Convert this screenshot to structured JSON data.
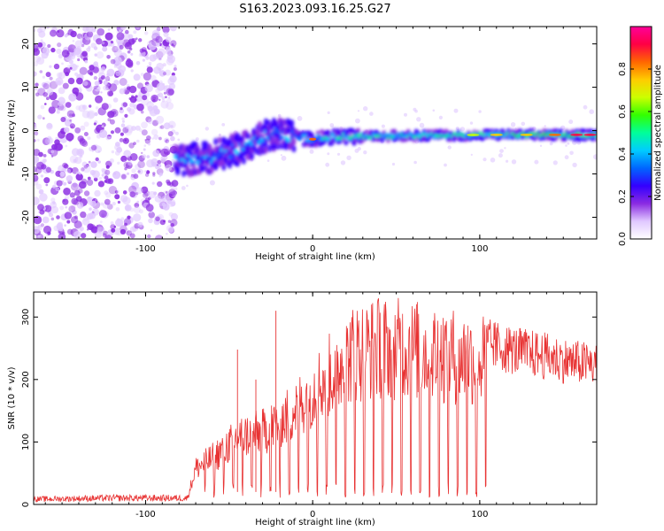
{
  "title": "S163.2023.093.16.25.G27",
  "colors": {
    "snr_line": "#e83333",
    "noise_dots": "#9b59ff",
    "colormap": [
      "#ffffff",
      "#e0c8ff",
      "#8a2be2",
      "#3300ff",
      "#0066ff",
      "#00ccff",
      "#00ff99",
      "#33ff00",
      "#ccff00",
      "#ffcc00",
      "#ff6600",
      "#ff0044",
      "#ff0099"
    ]
  },
  "chart_data": [
    {
      "type": "heatmap",
      "xlabel": "Height of straight line (km)",
      "ylabel": "Frequency (Hz)",
      "xlim": [
        -167,
        170
      ],
      "ylim": [
        -25,
        24
      ],
      "x_ticks": [
        -100,
        0,
        100
      ],
      "x_tick_labels": [
        "-100",
        "0",
        "100"
      ],
      "y_ticks": [
        -20,
        -10,
        0,
        10,
        20
      ],
      "y_tick_labels": [
        "-20",
        "-10",
        "0",
        "10",
        "20"
      ],
      "grid": false,
      "colorbar": {
        "label": "Normalized spectral amplitude",
        "range": [
          0,
          1
        ],
        "ticks": [
          0.0,
          0.2,
          0.4,
          0.6,
          0.8
        ],
        "tick_labels": [
          "0.0",
          "0.2",
          "0.4",
          "0.6",
          "0.8"
        ]
      },
      "ridge": [
        {
          "x": -80,
          "y": -7
        },
        {
          "x": -70,
          "y": -6.5
        },
        {
          "x": -60,
          "y": -6
        },
        {
          "x": -50,
          "y": -5
        },
        {
          "x": -40,
          "y": -3.5
        },
        {
          "x": -30,
          "y": -1.5
        },
        {
          "x": -20,
          "y": -0.5
        },
        {
          "x": -10,
          "y": -1.5
        },
        {
          "x": 0,
          "y": -2
        },
        {
          "x": 10,
          "y": -1.5
        },
        {
          "x": 50,
          "y": -1.2
        },
        {
          "x": 100,
          "y": -1
        },
        {
          "x": 140,
          "y": -1
        },
        {
          "x": 170,
          "y": -1
        }
      ],
      "noise_region_x": [
        -167,
        -82
      ]
    },
    {
      "type": "line",
      "xlabel": "Height of straight line (km)",
      "ylabel": "SNR (10 * v/v)",
      "xlim": [
        -167,
        170
      ],
      "ylim": [
        0,
        340
      ],
      "x_ticks": [
        -100,
        0,
        100
      ],
      "x_tick_labels": [
        "-100",
        "0",
        "100"
      ],
      "y_ticks": [
        0,
        100,
        200,
        300
      ],
      "y_tick_labels": [
        "0",
        "100",
        "200",
        "300"
      ],
      "grid": false,
      "series": [
        {
          "envelope": [
            {
              "x": -167,
              "y": 10
            },
            {
              "x": -120,
              "y": 12
            },
            {
              "x": -75,
              "y": 12
            },
            {
              "x": -70,
              "y": 70
            },
            {
              "x": -60,
              "y": 90
            },
            {
              "x": -45,
              "y": 130
            },
            {
              "x": -30,
              "y": 140
            },
            {
              "x": -15,
              "y": 170
            },
            {
              "x": 0,
              "y": 220
            },
            {
              "x": 10,
              "y": 250
            },
            {
              "x": 25,
              "y": 295
            },
            {
              "x": 40,
              "y": 305
            },
            {
              "x": 60,
              "y": 300
            },
            {
              "x": 80,
              "y": 290
            },
            {
              "x": 100,
              "y": 280
            },
            {
              "x": 120,
              "y": 265
            },
            {
              "x": 140,
              "y": 255
            },
            {
              "x": 155,
              "y": 245
            },
            {
              "x": 170,
              "y": 240
            }
          ],
          "dropouts_until_x": 104
        }
      ]
    }
  ]
}
